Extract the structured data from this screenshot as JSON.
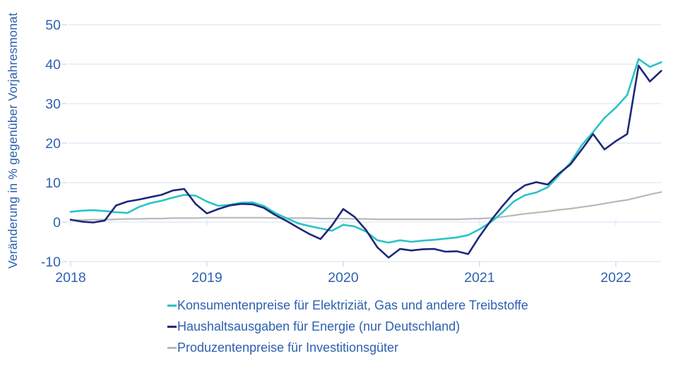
{
  "chart_data": {
    "type": "line",
    "title": "",
    "ylabel": "Veränderung in % gegenüber Vorjahresmonat",
    "xlabel": "",
    "ylim": [
      -10,
      50
    ],
    "yticks": [
      50,
      40,
      30,
      20,
      10,
      0,
      -10
    ],
    "xticks": [
      "2018",
      "2019",
      "2020",
      "2021",
      "2022"
    ],
    "x_start": "2018-01",
    "x_end": "2022-05",
    "x_frequency": "monthly",
    "grid": "horizontal",
    "legend_position": "bottom",
    "colors": {
      "axis_text": "#2e61b0",
      "gridline": "#dce8f6",
      "tick_mark": "#c7d8ee",
      "background": "#ffffff"
    },
    "series": [
      {
        "name": "Konsumentenpreise für Elektriziät, Gas und andere Treibstoffe",
        "color": "#29c4c4",
        "values": [
          2.6,
          2.9,
          3.0,
          2.8,
          2.5,
          2.3,
          3.8,
          4.8,
          5.4,
          6.2,
          6.9,
          6.7,
          5.2,
          4.1,
          4.4,
          4.9,
          5.0,
          4.1,
          2.3,
          1.0,
          -0.3,
          -1.0,
          -1.6,
          -2.2,
          -0.7,
          -1.1,
          -2.4,
          -4.6,
          -5.2,
          -4.6,
          -5.0,
          -4.7,
          -4.5,
          -4.2,
          -3.9,
          -3.3,
          -1.8,
          0.0,
          2.4,
          5.2,
          6.8,
          7.5,
          8.8,
          11.9,
          15.0,
          19.5,
          22.8,
          26.4,
          29.0,
          32.2,
          41.3,
          39.3,
          40.5
        ]
      },
      {
        "name": "Haushaltsausgaben für Energie (nur Deutschland)",
        "color": "#1e2878",
        "values": [
          0.6,
          0.1,
          -0.1,
          0.4,
          4.2,
          5.2,
          5.7,
          6.3,
          6.9,
          8.0,
          8.4,
          4.6,
          2.2,
          3.3,
          4.2,
          4.6,
          4.5,
          3.6,
          1.8,
          0.3,
          -1.4,
          -3.0,
          -4.3,
          -0.9,
          3.3,
          1.3,
          -2.0,
          -6.4,
          -9.0,
          -6.8,
          -7.2,
          -6.9,
          -6.8,
          -7.5,
          -7.4,
          -8.1,
          -3.6,
          0.4,
          4.0,
          7.3,
          9.3,
          10.1,
          9.5,
          12.3,
          14.6,
          18.4,
          22.3,
          18.4,
          20.5,
          22.3,
          39.6,
          35.6,
          38.3
        ]
      },
      {
        "name": "Produzentenpreise für Investitionsgüter",
        "color": "#b9b9b9",
        "values": [
          0.5,
          0.5,
          0.6,
          0.6,
          0.7,
          0.8,
          0.8,
          0.9,
          0.9,
          1.0,
          1.0,
          1.0,
          1.1,
          1.1,
          1.1,
          1.1,
          1.1,
          1.1,
          1.0,
          1.0,
          1.0,
          1.0,
          0.9,
          0.9,
          0.9,
          0.8,
          0.8,
          0.7,
          0.7,
          0.7,
          0.7,
          0.7,
          0.7,
          0.7,
          0.7,
          0.8,
          0.9,
          1.0,
          1.3,
          1.7,
          2.1,
          2.4,
          2.7,
          3.1,
          3.4,
          3.8,
          4.2,
          4.7,
          5.2,
          5.6,
          6.3,
          7.0,
          7.6
        ]
      }
    ]
  }
}
